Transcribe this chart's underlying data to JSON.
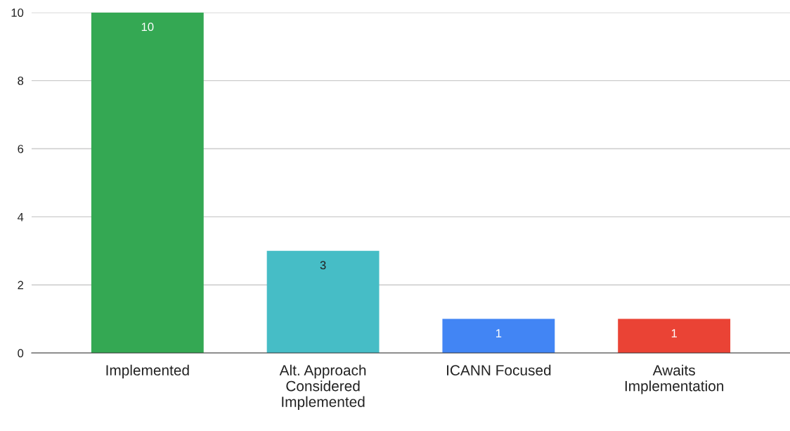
{
  "chart_data": {
    "type": "bar",
    "categories": [
      "Implemented",
      "Alt. Approach Considered Implemented",
      "ICANN Focused",
      "Awaits Implementation"
    ],
    "values": [
      10,
      3,
      1,
      1
    ],
    "colors": [
      "#34a853",
      "#46bdc6",
      "#4285f4",
      "#ea4335"
    ],
    "ylim": [
      0,
      10
    ],
    "yticks": [
      0,
      2,
      4,
      6,
      8,
      10
    ],
    "grid": "y",
    "data_labels": true
  }
}
